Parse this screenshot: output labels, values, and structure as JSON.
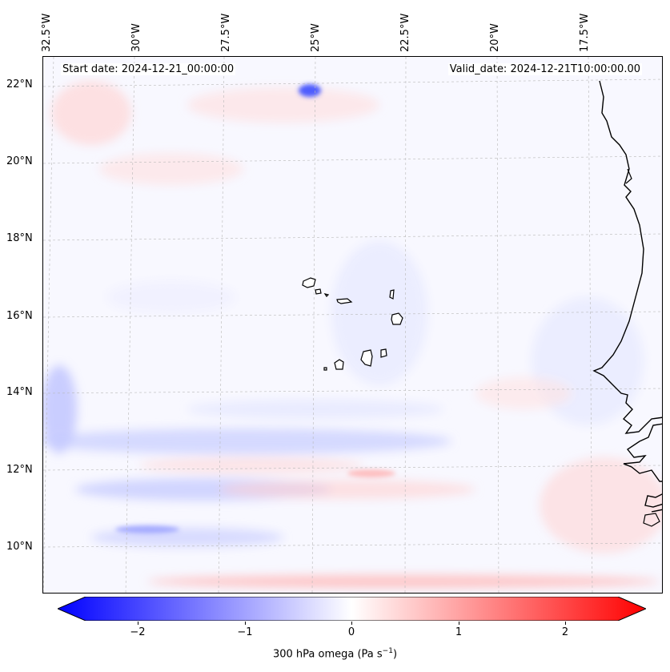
{
  "map": {
    "start_date": "Start date: 2024-12-21_00:00:00",
    "valid_date": "Valid_date: 2024-12-21T10:00:00.00",
    "lon_labels": [
      "32.5°W",
      "30°W",
      "27.5°W",
      "25°W",
      "22.5°W",
      "20°W",
      "17.5°W"
    ],
    "lat_labels": [
      "22°N",
      "20°N",
      "18°N",
      "16°N",
      "14°N",
      "12°N",
      "10°N"
    ],
    "colors": {
      "negative": "#0000ff",
      "zero": "#ffffff",
      "positive": "#ff0000",
      "coastline": "#000000"
    }
  },
  "colorbar": {
    "ticks": [
      "−2",
      "−1",
      "0",
      "1",
      "2"
    ],
    "label": "300 hPa omega (Pa s",
    "label_sup": "−1",
    "label_end": ")"
  }
}
